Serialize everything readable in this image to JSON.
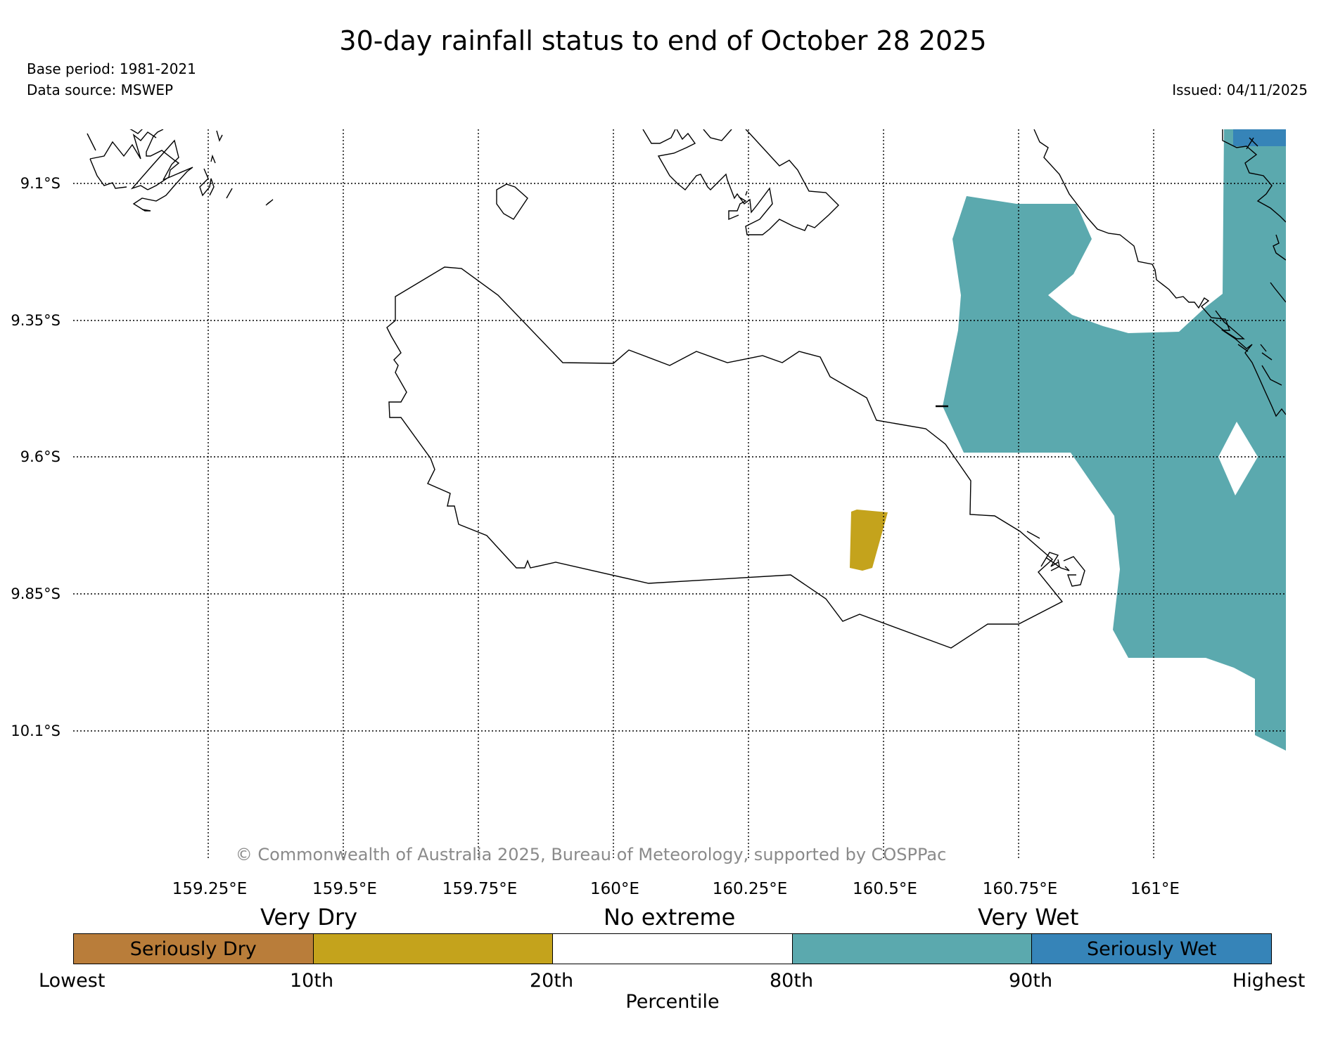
{
  "header": {
    "title": "30-day rainfall status to end of October 28 2025",
    "base_period": "Base period: 1981-2021",
    "data_source": "Data source: MSWEP",
    "issued": "Issued: 04/11/2025"
  },
  "map": {
    "lat_labels": [
      "9.1°S",
      "9.35°S",
      "9.6°S",
      "9.85°S",
      "10.1°S"
    ],
    "lon_labels": [
      "159.25°E",
      "159.5°E",
      "159.75°E",
      "160°E",
      "160.25°E",
      "160.5°E",
      "160.75°E",
      "161°E"
    ],
    "copyright": "© Commonwealth of Australia 2025, Bureau of Meteorology, supported by COSPPac",
    "colors": {
      "very_wet": "#5ba9ae",
      "seriously_wet": "#3684b8",
      "very_dry": "#c4a31c",
      "coastline": "#000000",
      "gridline": "#000000"
    }
  },
  "legend": {
    "categories": [
      "Very Dry",
      "No extreme",
      "Very Wet"
    ],
    "segments": [
      {
        "label": "Seriously Dry",
        "color": "#b97d3a"
      },
      {
        "label": "",
        "color": "#c4a31c"
      },
      {
        "label": "",
        "color": "#ffffff"
      },
      {
        "label": "",
        "color": "#5ba9ae"
      },
      {
        "label": "Seriously Wet",
        "color": "#3684b8"
      }
    ],
    "ticks": [
      "Lowest",
      "10th",
      "20th",
      "80th",
      "90th",
      "Highest"
    ],
    "axis_label": "Percentile"
  }
}
